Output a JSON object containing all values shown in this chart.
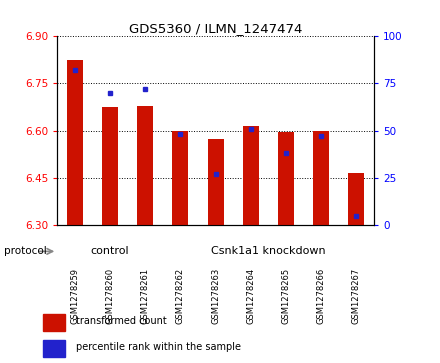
{
  "title": "GDS5360 / ILMN_1247474",
  "samples": [
    "GSM1278259",
    "GSM1278260",
    "GSM1278261",
    "GSM1278262",
    "GSM1278263",
    "GSM1278264",
    "GSM1278265",
    "GSM1278266",
    "GSM1278267"
  ],
  "bar_values": [
    6.825,
    6.675,
    6.68,
    6.6,
    6.575,
    6.615,
    6.595,
    6.6,
    6.465
  ],
  "percentile_values": [
    82,
    70,
    72,
    48,
    27,
    51,
    38,
    47,
    5
  ],
  "ylim_left": [
    6.3,
    6.9
  ],
  "ylim_right": [
    0,
    100
  ],
  "yticks_left": [
    6.3,
    6.45,
    6.6,
    6.75,
    6.9
  ],
  "yticks_right": [
    0,
    25,
    50,
    75,
    100
  ],
  "bar_color": "#cc1100",
  "percentile_color": "#2222cc",
  "n_ctrl": 3,
  "n_kd": 6,
  "control_label": "control",
  "knockdown_label": "Csnk1a1 knockdown",
  "protocol_label": "protocol",
  "legend_tc": "transformed count",
  "legend_pr": "percentile rank within the sample",
  "group_color": "#90ee90",
  "bar_width": 0.45,
  "tick_label_bg": "#cccccc"
}
